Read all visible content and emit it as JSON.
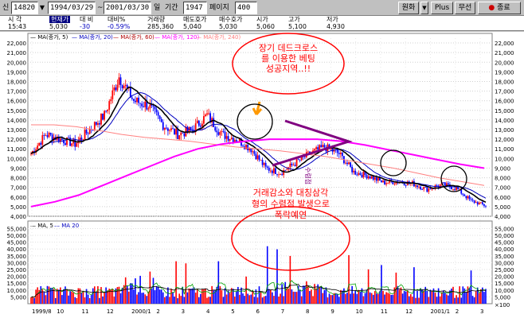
{
  "toolbar": {
    "code_prefix": "신",
    "code": "14820",
    "start_date": "1994/03/29",
    "separator": "~",
    "end_date": "2001/03/30",
    "period_unit": "일",
    "period_label": "기간",
    "period_value": "1947",
    "page_label": "페이지",
    "page_value": "400",
    "currency_btn": "원화",
    "plus_btn": "Plus",
    "none_btn": "무선",
    "close_btn": "종료"
  },
  "quote": {
    "headers": [
      "시 각",
      "현재가",
      "대 비",
      "대비%",
      "거래량",
      "매도호가",
      "매수호가",
      "시가",
      "고가",
      "저가"
    ],
    "values": [
      "15:43",
      "5,030",
      "-30",
      "-0.59%",
      "285,360",
      "5,040",
      "5,030",
      "5,060",
      "5,100",
      "4,930"
    ]
  },
  "price_legend": [
    "MA(종가, 5)",
    "MA(종가, 20)",
    "MA(종가, 60)",
    "MA(종가, 120)",
    "MA(종가, 240)"
  ],
  "volume_legend": [
    "MA, 5",
    "MA 20"
  ],
  "annotations": {
    "top_note": [
      "장기 데드크로스",
      "를 이용한 베팅",
      "성공지역..!!"
    ],
    "bottom_note": [
      "거래감소와 대칭삼각",
      "형의 수렴점 발생으로",
      "폭락예연"
    ],
    "triangle_text": "수렴점"
  },
  "colors": {
    "candle_up": "#ff0000",
    "candle_down": "#0000ff",
    "ma5": "#000000",
    "ma20": "#0000c0",
    "ma60": "#b00000",
    "ma120": "#ff00ff",
    "ma240": "#ff8080",
    "annotation_red": "#ff0000",
    "triangle": "#800080"
  },
  "chart_data": {
    "type": "candlestick",
    "price_axis": [
      22000,
      21000,
      20000,
      19000,
      18000,
      17000,
      16000,
      15000,
      14000,
      13000,
      12000,
      11000,
      10000,
      9000,
      8000,
      7000,
      6000,
      5000,
      4000
    ],
    "volume_axis": [
      55000,
      50000,
      45000,
      40000,
      35000,
      30000,
      25000,
      20000,
      15000,
      10000,
      5000
    ],
    "volume_unit": "×100",
    "x_labels": [
      "1999/8",
      "10",
      "11",
      "12",
      "2000/1",
      "2",
      "3",
      "4",
      "5",
      "6",
      "7",
      "8",
      "9",
      "10",
      "11",
      "12",
      "2001/1",
      "2",
      "3"
    ],
    "ylim": [
      4000,
      22500
    ],
    "closes": [
      10500,
      12500,
      12000,
      11500,
      13000,
      14500,
      18500,
      16000,
      15500,
      13500,
      12500,
      13000,
      14500,
      12500,
      12000,
      11000,
      9000,
      8500,
      9500,
      10500,
      11200,
      10500,
      8600,
      8200,
      7500,
      7600,
      7400,
      6800,
      7300,
      6900,
      5600,
      5100
    ],
    "ma_long": [
      13500,
      13500,
      13300,
      12900,
      12500,
      12200,
      12000,
      11800,
      11500,
      11200,
      11000,
      10800,
      10500,
      10200,
      9800,
      9400,
      9000,
      8500,
      8000,
      7600,
      7200
    ],
    "ma_long2": [
      5000,
      5500,
      6200,
      7200,
      8200,
      9200,
      10200,
      11000,
      11500,
      11800,
      12000,
      12000,
      12000,
      11800,
      11400,
      10900,
      10400,
      9900,
      9400,
      9000
    ]
  }
}
